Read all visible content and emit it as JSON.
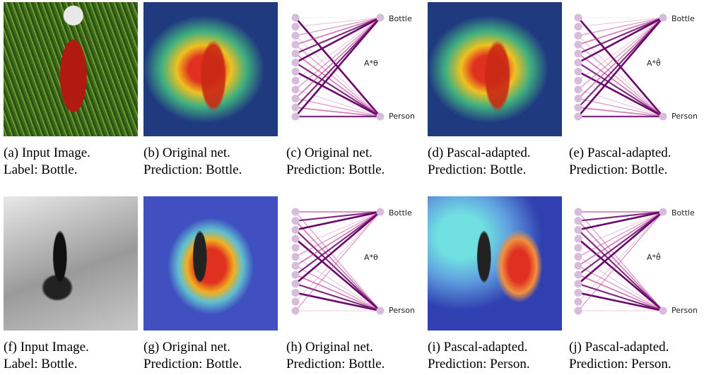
{
  "panels": [
    {
      "caption": [
        "(a) Input Image.",
        "Label: Bottle."
      ]
    },
    {
      "caption": [
        "(b) Original net.",
        "Prediction: Bottle."
      ]
    },
    {
      "caption": [
        "(c) Original net.",
        "Prediction: Bottle."
      ],
      "labels": {
        "top": "Bottle",
        "bottom": "Person",
        "weight": "A*θ"
      }
    },
    {
      "caption": [
        "(d) Pascal-adapted.",
        "Prediction: Bottle."
      ]
    },
    {
      "caption": [
        "(e) Pascal-adapted.",
        "Prediction: Bottle."
      ],
      "labels": {
        "top": "Bottle",
        "bottom": "Person",
        "weight": "A*θ̂"
      }
    },
    {
      "caption": [
        "(f) Input Image.",
        "Label: Bottle."
      ]
    },
    {
      "caption": [
        "(g) Original net.",
        "Prediction: Bottle."
      ]
    },
    {
      "caption": [
        "(h) Original net.",
        "Prediction: Bottle."
      ],
      "labels": {
        "top": "Bottle",
        "bottom": "Person",
        "weight": "A*θ"
      }
    },
    {
      "caption": [
        "(i) Pascal-adapted.",
        "Prediction: Person."
      ]
    },
    {
      "caption": [
        "(j) Pascal-adapted.",
        "Prediction: Person."
      ],
      "labels": {
        "top": "Bottle",
        "bottom": "Person",
        "weight": "A*θ̂"
      }
    }
  ]
}
